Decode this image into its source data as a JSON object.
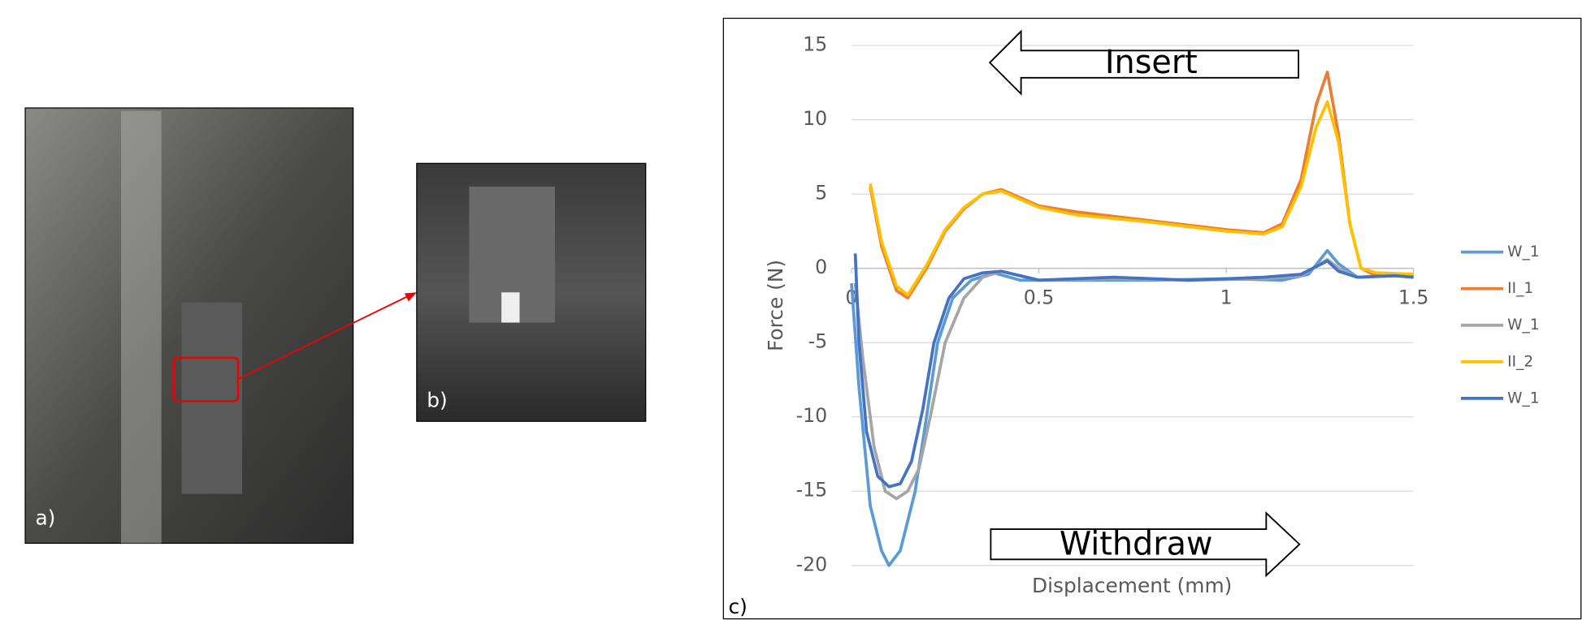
{
  "panels": {
    "labels": [
      "a)",
      "b)",
      "c)"
    ]
  },
  "chart_data": {
    "type": "line",
    "x_label": "Displacement (mm)",
    "y_label": "Force (N)",
    "annotations": [
      "Insert",
      "Withdraw"
    ],
    "xlim": [
      0,
      1.5
    ],
    "xticks": [
      0,
      0.5,
      1,
      1.5
    ],
    "ylim": [
      -20,
      15
    ],
    "yticks": [
      -20,
      -15,
      -10,
      -5,
      0,
      5,
      10,
      15
    ],
    "grid": true,
    "legend": "right",
    "series": [
      {
        "name": "W_1",
        "color": "#5b9bd5",
        "x": [
          0,
          0.02,
          0.05,
          0.08,
          0.1,
          0.13,
          0.17,
          0.2,
          0.23,
          0.27,
          0.32,
          0.38,
          0.45,
          0.6,
          0.8,
          1.0,
          1.15,
          1.22,
          1.27,
          1.3,
          1.35,
          1.45,
          1.5
        ],
        "values": [
          -1,
          -8,
          -16,
          -19,
          -20,
          -19,
          -15,
          -10,
          -5,
          -2,
          -0.8,
          -0.3,
          -0.8,
          -0.8,
          -0.8,
          -0.7,
          -0.8,
          -0.4,
          1.2,
          0.3,
          -0.6,
          -0.5,
          -0.6
        ]
      },
      {
        "name": "II_1",
        "color": "#ed7d31",
        "x": [
          0.05,
          0.08,
          0.12,
          0.15,
          0.2,
          0.25,
          0.3,
          0.35,
          0.4,
          0.5,
          0.6,
          0.8,
          1.0,
          1.1,
          1.15,
          1.2,
          1.24,
          1.27,
          1.3,
          1.33,
          1.36,
          1.4,
          1.5
        ],
        "values": [
          5.5,
          1.5,
          -1.5,
          -2,
          0,
          2.5,
          4,
          5,
          5.3,
          4.2,
          3.8,
          3.2,
          2.6,
          2.4,
          3,
          6,
          11,
          13.2,
          9,
          3,
          0,
          -0.5,
          -0.5
        ]
      },
      {
        "name": "W_1",
        "color": "#a5a5a5",
        "x": [
          0.01,
          0.03,
          0.06,
          0.09,
          0.12,
          0.15,
          0.18,
          0.21,
          0.25,
          0.3,
          0.35,
          0.4,
          0.5,
          0.7,
          0.9,
          1.1,
          1.2,
          1.27,
          1.3,
          1.35,
          1.45,
          1.5
        ],
        "values": [
          -1,
          -6,
          -12,
          -15,
          -15.5,
          -15,
          -13.5,
          -10,
          -5,
          -2,
          -0.6,
          -0.2,
          -0.8,
          -0.7,
          -0.8,
          -0.7,
          -0.5,
          0.6,
          0,
          -0.6,
          -0.5,
          -0.5
        ]
      },
      {
        "name": "II_2",
        "color": "#ffc000",
        "x": [
          0.05,
          0.08,
          0.12,
          0.15,
          0.2,
          0.25,
          0.3,
          0.35,
          0.4,
          0.5,
          0.6,
          0.8,
          1.0,
          1.1,
          1.15,
          1.2,
          1.24,
          1.27,
          1.3,
          1.33,
          1.36,
          1.4,
          1.5
        ],
        "values": [
          5.7,
          1.8,
          -1.2,
          -1.8,
          0.2,
          2.6,
          4.1,
          5,
          5.2,
          4.1,
          3.6,
          3.1,
          2.5,
          2.3,
          2.8,
          5.5,
          9.5,
          11.2,
          8.5,
          3,
          0,
          -0.3,
          -0.4
        ]
      },
      {
        "name": "W_1",
        "color": "#4472c4",
        "x": [
          0.01,
          0.02,
          0.04,
          0.07,
          0.1,
          0.13,
          0.16,
          0.19,
          0.22,
          0.26,
          0.3,
          0.35,
          0.4,
          0.5,
          0.7,
          0.9,
          1.1,
          1.2,
          1.27,
          1.3,
          1.35,
          1.45,
          1.5
        ],
        "values": [
          1,
          -5,
          -11,
          -14,
          -14.7,
          -14.5,
          -13,
          -9.5,
          -5,
          -2,
          -0.7,
          -0.3,
          -0.2,
          -0.8,
          -0.6,
          -0.8,
          -0.6,
          -0.4,
          0.5,
          -0.2,
          -0.6,
          -0.5,
          -0.6
        ]
      }
    ]
  }
}
